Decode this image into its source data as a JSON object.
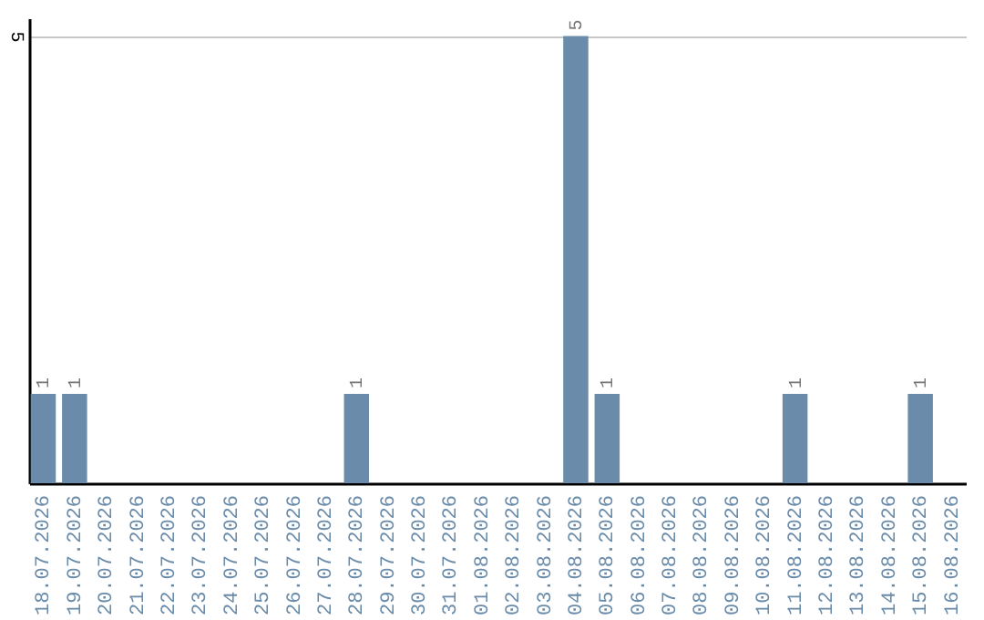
{
  "chart_data": {
    "type": "bar",
    "categories": [
      "18.07.2026",
      "19.07.2026",
      "20.07.2026",
      "21.07.2026",
      "22.07.2026",
      "23.07.2026",
      "24.07.2026",
      "25.07.2026",
      "26.07.2026",
      "27.07.2026",
      "28.07.2026",
      "29.07.2026",
      "30.07.2026",
      "31.07.2026",
      "01.08.2026",
      "02.08.2026",
      "03.08.2026",
      "04.08.2026",
      "05.08.2026",
      "06.08.2026",
      "07.08.2026",
      "08.08.2026",
      "09.08.2026",
      "10.08.2026",
      "11.08.2026",
      "12.08.2026",
      "13.08.2026",
      "14.08.2026",
      "15.08.2026",
      "16.08.2026"
    ],
    "values": [
      1,
      1,
      0,
      0,
      0,
      0,
      0,
      0,
      0,
      0,
      1,
      0,
      0,
      0,
      0,
      0,
      0,
      5,
      1,
      0,
      0,
      0,
      0,
      0,
      1,
      0,
      0,
      0,
      1,
      0
    ],
    "value_labels": [
      "1",
      "1",
      null,
      null,
      null,
      null,
      null,
      null,
      null,
      null,
      "1",
      null,
      null,
      null,
      null,
      null,
      null,
      "5",
      "1",
      null,
      null,
      null,
      null,
      null,
      "1",
      null,
      null,
      null,
      "1",
      null
    ],
    "color": "#6a8caa",
    "ylim": [
      0,
      5.2
    ],
    "yticks": [
      5
    ],
    "grid": "y"
  }
}
